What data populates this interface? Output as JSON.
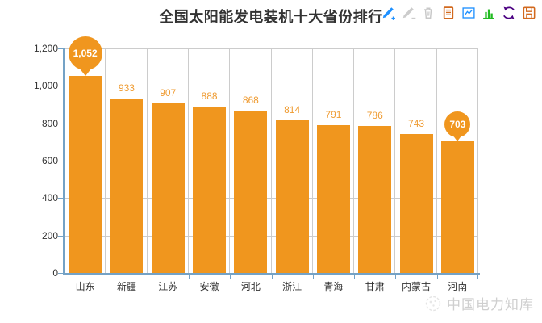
{
  "title": "全国太阳能发电装机十大省份排行",
  "toolbar": {
    "icons": [
      {
        "name": "mark (标注)",
        "color": "#1e90ff"
      },
      {
        "name": "mark-undo (删除标注)",
        "color": "#cccccc"
      },
      {
        "name": "mark-clear (清空标注)",
        "color": "#c8c8c8"
      },
      {
        "name": "data-view (数据视图)",
        "color": "#d2691e"
      },
      {
        "name": "magictype-line (折线图)",
        "color": "#1e90ff"
      },
      {
        "name": "magictype-bar (柱形图)",
        "color": "#22bb22"
      },
      {
        "name": "restore (还原)",
        "color": "#4b0082"
      },
      {
        "name": "save-as-image (保存为图片)",
        "color": "#d2691e"
      }
    ]
  },
  "chart_data": {
    "type": "bar",
    "title": "全国太阳能发电装机十大省份排行",
    "categories": [
      "山东",
      "新疆",
      "江苏",
      "安徽",
      "河北",
      "浙江",
      "青海",
      "甘肃",
      "内蒙古",
      "河南"
    ],
    "values": [
      1052,
      933,
      907,
      888,
      868,
      814,
      791,
      786,
      743,
      703
    ],
    "value_labels": [
      "1,052",
      "933",
      "907",
      "888",
      "868",
      "814",
      "791",
      "786",
      "743",
      "703"
    ],
    "xlabel": "",
    "ylabel": "",
    "ylim": [
      0,
      1200
    ],
    "ytick_interval": 200,
    "ytick_labels": [
      "0",
      "200",
      "400",
      "600",
      "800",
      "1,000",
      "1,200"
    ],
    "grid": true,
    "legend": "none",
    "mark_points": [
      {
        "category": "山东",
        "value": 1052,
        "label": "1,052",
        "kind": "max"
      },
      {
        "category": "河南",
        "value": 703,
        "label": "703",
        "kind": "min"
      }
    ],
    "bar_color": "#F0961E",
    "label_color": "#EF9C33",
    "pin_text_color": "#ffffff",
    "axis_color": "#74A2C6",
    "grid_color": "#CCCCCC",
    "text_color": "#333333"
  },
  "watermark": {
    "text": "中国电力知库"
  }
}
